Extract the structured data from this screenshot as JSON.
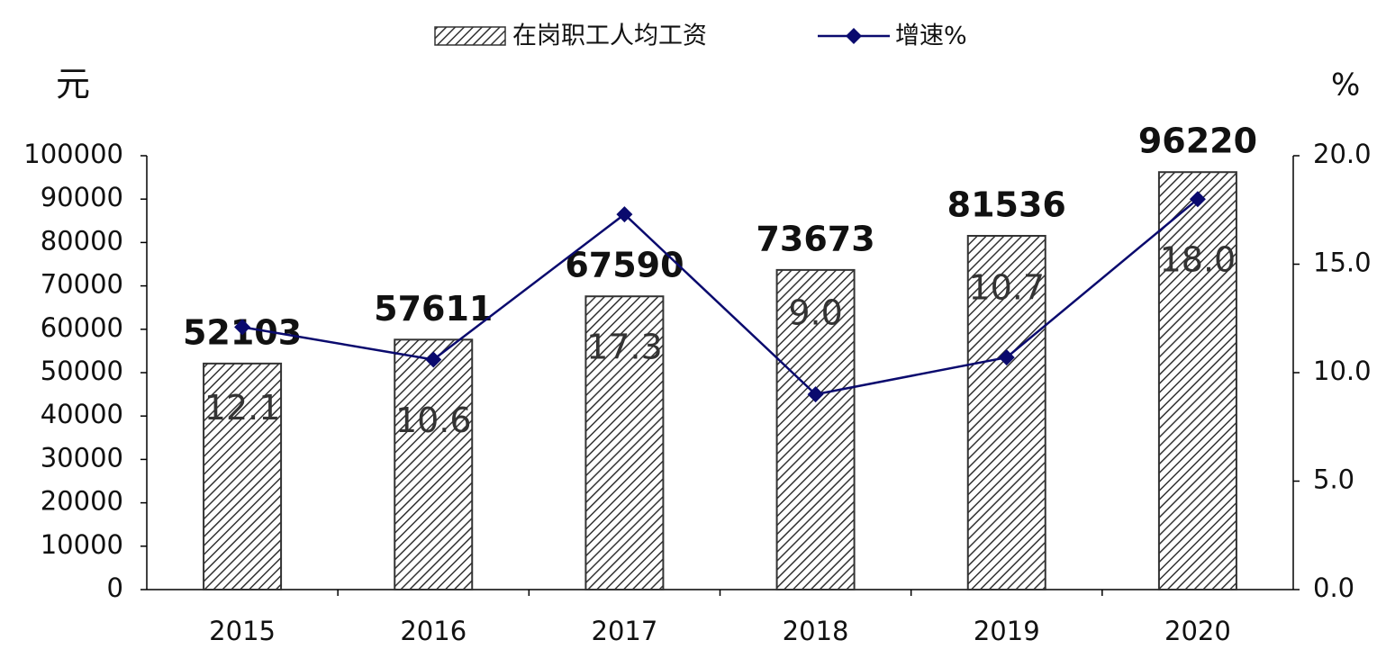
{
  "chart_data": {
    "type": "bar-line",
    "categories": [
      "2015",
      "2016",
      "2017",
      "2018",
      "2019",
      "2020"
    ],
    "series": [
      {
        "name": "在岗职工人均工资",
        "type": "bar",
        "color": "#333333",
        "values": [
          52103,
          57611,
          67590,
          73673,
          81536,
          96220
        ]
      },
      {
        "name": "增速%",
        "type": "line",
        "axis": "y2",
        "color": "#0a0a6e",
        "values": [
          12.1,
          10.6,
          17.3,
          9.0,
          10.7,
          18.0
        ],
        "value_labels": [
          "12.1",
          "10.6",
          "17.3",
          "9.0",
          "10.7",
          "18.0"
        ]
      }
    ],
    "y_label": "元",
    "y2_label": "%",
    "ylim": [
      0,
      100000
    ],
    "yticks": [
      0,
      10000,
      20000,
      30000,
      40000,
      50000,
      60000,
      70000,
      80000,
      90000,
      100000
    ],
    "y2lim": [
      0,
      20
    ],
    "y2ticks": [
      {
        "value": 0,
        "label": "0.0"
      },
      {
        "value": 5,
        "label": "5.0"
      },
      {
        "value": 10,
        "label": "10.0"
      },
      {
        "value": 15,
        "label": "15.0"
      },
      {
        "value": 20,
        "label": "20.0"
      }
    ],
    "grid": false
  }
}
